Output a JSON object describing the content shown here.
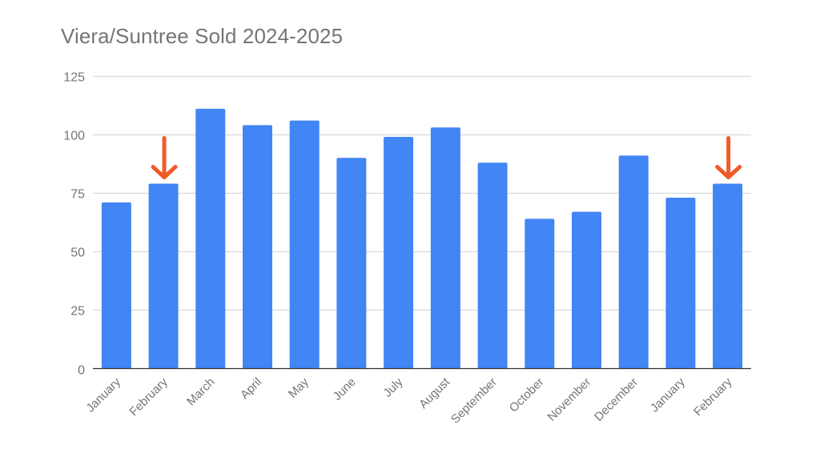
{
  "chart_data": {
    "type": "bar",
    "title": "Viera/Suntree Sold 2024-2025",
    "xlabel": "",
    "ylabel": "",
    "categories": [
      "January",
      "February",
      "March",
      "April",
      "May",
      "June",
      "July",
      "August",
      "September",
      "October",
      "November",
      "December",
      "January",
      "February"
    ],
    "values": [
      71,
      79,
      111,
      104,
      106,
      90,
      99,
      103,
      88,
      64,
      67,
      91,
      73,
      79
    ],
    "ylim": [
      0,
      125
    ],
    "yticks": [
      0,
      25,
      50,
      75,
      100,
      125
    ],
    "grid": true,
    "legend": "none",
    "series_color": "#4285f4",
    "annotations": [
      {
        "type": "arrow",
        "target_index": 1,
        "color": "#f05a28",
        "direction": "down"
      },
      {
        "type": "arrow",
        "target_index": 13,
        "color": "#f05a28",
        "direction": "down"
      }
    ]
  },
  "colors": {
    "bar": "#4285f4",
    "arrow": "#f05a28",
    "grid": "#d9d9d9",
    "axis": "#333333",
    "text": "#757575"
  }
}
